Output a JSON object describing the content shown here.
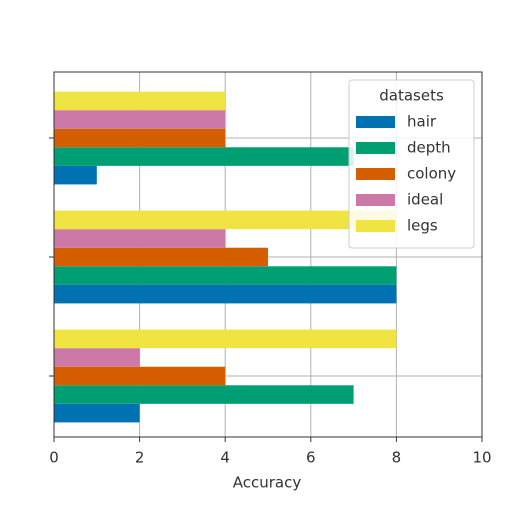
{
  "chart_data": {
    "type": "hbar",
    "xlabel": "Accuracy",
    "categories": [
      null,
      null,
      null
    ],
    "series": [
      {
        "name": "hair",
        "color": "#0072b2",
        "values": [
          2,
          8,
          1
        ]
      },
      {
        "name": "depth",
        "color": "#009e73",
        "values": [
          7,
          8,
          7
        ]
      },
      {
        "name": "colony",
        "color": "#d55e00",
        "values": [
          4,
          5,
          4
        ]
      },
      {
        "name": "ideal",
        "color": "#cc79a7",
        "values": [
          2,
          4,
          4
        ]
      },
      {
        "name": "legs",
        "color": "#f0e442",
        "values": [
          8,
          8,
          4
        ]
      }
    ],
    "legend_title": "datasets",
    "legend": "upper right",
    "xlim": [
      0,
      10
    ],
    "xticks": [
      0,
      2,
      4,
      6,
      8,
      10
    ],
    "grid": true
  }
}
